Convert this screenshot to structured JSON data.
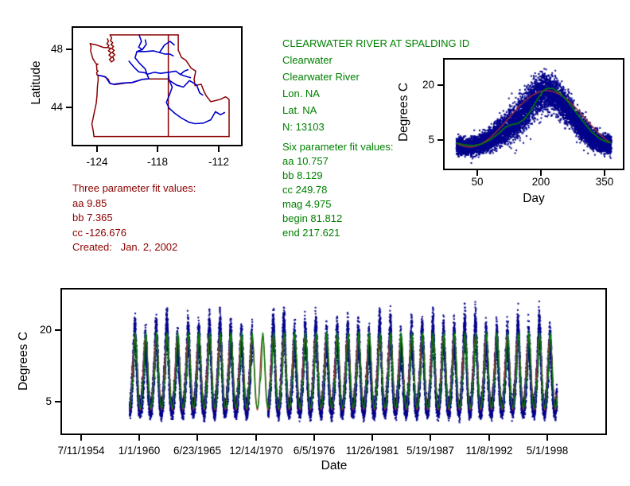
{
  "colors": {
    "background": "#ffffff",
    "axis": "#000000",
    "scatter_point": "#00008B",
    "fit_green": "#008000",
    "fit_red": "#993333",
    "map_border": "#8B0000",
    "map_river": "#0000CC",
    "text_green": "#008000",
    "text_red": "#8B0000"
  },
  "station_info": {
    "title": "CLEARWATER RIVER AT SPALDING ID",
    "lines": [
      "Clearwater",
      "Clearwater River",
      "Lon. NA",
      "Lat. NA",
      "N: 13103"
    ],
    "fit_header": "Six parameter fit values:",
    "fit_values": [
      "aa 10.757",
      "bb 8.129",
      "cc 249.78",
      "mag 4.975",
      "begin 81.812",
      "end 217.621"
    ]
  },
  "three_param": {
    "header": "Three parameter fit values:",
    "values": [
      "aa 9.85",
      "bb 7.365",
      "cc -126.676"
    ],
    "created": "Created:   Jan. 2, 2002"
  },
  "chart_data": [
    {
      "type": "map",
      "name": "station-locator-map",
      "ylabel": "Latitude",
      "x_ticks": [
        "-124",
        "-118",
        "-112"
      ],
      "y_ticks": [
        "48",
        "44"
      ],
      "lon_range": [
        -126.39,
        -109.88
      ],
      "lat_range": [
        41.43,
        49.48
      ],
      "border_color": "#8B0000",
      "river_color": "#0000CC",
      "state_borders": [
        [
          [
            -124.72,
            48.39
          ],
          [
            -124.63,
            48.2
          ],
          [
            -124.68,
            47.9
          ],
          [
            -124.45,
            47.35
          ],
          [
            -124.18,
            47.05
          ],
          [
            -124.1,
            47.0
          ],
          [
            -123.95,
            46.98
          ],
          [
            -124.1,
            46.93
          ],
          [
            -124.05,
            46.55
          ],
          [
            -123.95,
            46.5
          ],
          [
            -124.08,
            46.4
          ],
          [
            -124.05,
            46.25
          ],
          [
            -123.95,
            46.22
          ],
          [
            -123.93,
            45.9
          ],
          [
            -124.0,
            45.45
          ],
          [
            -124.05,
            44.8
          ],
          [
            -124.12,
            44.3
          ],
          [
            -124.4,
            43.35
          ],
          [
            -124.55,
            42.85
          ],
          [
            -124.42,
            42.4
          ],
          [
            -124.35,
            42.0
          ]
        ],
        [
          [
            -124.35,
            42.0
          ],
          [
            -111.05,
            42.0
          ]
        ],
        [
          [
            -111.05,
            42.0
          ],
          [
            -111.05,
            44.55
          ],
          [
            -111.4,
            44.73
          ],
          [
            -111.9,
            44.56
          ],
          [
            -112.4,
            44.47
          ],
          [
            -112.85,
            44.4
          ],
          [
            -113.3,
            44.8
          ],
          [
            -113.52,
            45.1
          ],
          [
            -113.8,
            45.6
          ],
          [
            -114.4,
            45.5
          ],
          [
            -114.5,
            45.95
          ],
          [
            -114.33,
            46.5
          ],
          [
            -114.78,
            46.7
          ],
          [
            -115.3,
            47.25
          ],
          [
            -115.75,
            47.45
          ],
          [
            -116.05,
            47.95
          ],
          [
            -116.05,
            48.99
          ]
        ],
        [
          [
            -116.05,
            48.99
          ],
          [
            -122.76,
            48.99
          ]
        ],
        [
          [
            -117.03,
            48.99
          ],
          [
            -117.03,
            42.0
          ]
        ],
        [
          [
            -123.95,
            46.22
          ],
          [
            -123.4,
            46.15
          ],
          [
            -122.95,
            45.95
          ],
          [
            -122.76,
            45.65
          ],
          [
            -122.3,
            45.57
          ],
          [
            -121.2,
            45.68
          ],
          [
            -120.5,
            45.72
          ],
          [
            -119.6,
            45.93
          ],
          [
            -119.03,
            45.96
          ],
          [
            -117.03,
            45.96
          ]
        ],
        [
          [
            -122.76,
            48.99
          ],
          [
            -122.6,
            48.77
          ],
          [
            -122.72,
            48.6
          ],
          [
            -122.5,
            48.45
          ],
          [
            -122.67,
            48.33
          ],
          [
            -122.42,
            48.2
          ],
          [
            -122.6,
            48.05
          ],
          [
            -122.35,
            47.93
          ],
          [
            -122.55,
            47.78
          ],
          [
            -122.3,
            47.63
          ],
          [
            -122.52,
            47.48
          ],
          [
            -122.35,
            47.28
          ],
          [
            -122.62,
            47.13
          ],
          [
            -122.82,
            47.3
          ],
          [
            -122.6,
            47.45
          ],
          [
            -122.87,
            47.6
          ],
          [
            -122.65,
            47.77
          ],
          [
            -122.92,
            47.9
          ],
          [
            -122.7,
            48.07
          ],
          [
            -123.02,
            48.12
          ],
          [
            -122.87,
            48.27
          ],
          [
            -123.07,
            48.37
          ],
          [
            -122.92,
            48.55
          ],
          [
            -123.02,
            48.72
          ]
        ],
        [
          [
            -124.72,
            48.39
          ],
          [
            -124.1,
            48.3
          ],
          [
            -123.4,
            48.13
          ],
          [
            -123.07,
            48.12
          ]
        ]
      ],
      "rivers": [
        [
          [
            -119.9,
            48.99
          ],
          [
            -119.68,
            48.55
          ],
          [
            -119.95,
            48.15
          ],
          [
            -119.58,
            47.98
          ],
          [
            -120.12,
            47.85
          ],
          [
            -120.3,
            47.42
          ],
          [
            -119.92,
            47.08
          ],
          [
            -119.3,
            46.65
          ],
          [
            -119.12,
            46.28
          ],
          [
            -118.95,
            45.98
          ],
          [
            -119.6,
            45.93
          ],
          [
            -120.6,
            45.72
          ],
          [
            -121.6,
            45.68
          ],
          [
            -122.4,
            45.6
          ],
          [
            -122.78,
            45.66
          ],
          [
            -123.2,
            46.1
          ],
          [
            -123.95,
            46.22
          ]
        ],
        [
          [
            -119.58,
            47.98
          ],
          [
            -119.2,
            48.35
          ],
          [
            -119.3,
            48.65
          ]
        ],
        [
          [
            -120.12,
            47.85
          ],
          [
            -119.3,
            47.85
          ],
          [
            -118.5,
            47.9
          ],
          [
            -117.9,
            47.78
          ],
          [
            -117.4,
            47.68
          ],
          [
            -116.9,
            47.68
          ],
          [
            -116.55,
            47.55
          ]
        ],
        [
          [
            -117.9,
            47.78
          ],
          [
            -117.4,
            48.3
          ],
          [
            -116.85,
            48.55
          ],
          [
            -116.45,
            48.3
          ]
        ],
        [
          [
            -120.9,
            47.18
          ],
          [
            -120.45,
            46.8
          ],
          [
            -119.95,
            46.45
          ],
          [
            -119.3,
            46.38
          ],
          [
            -119.12,
            46.28
          ]
        ],
        [
          [
            -112.4,
            43.7
          ],
          [
            -112.85,
            43.15
          ],
          [
            -113.6,
            42.92
          ],
          [
            -114.4,
            42.88
          ],
          [
            -115.0,
            42.98
          ],
          [
            -115.8,
            43.3
          ],
          [
            -116.4,
            43.6
          ],
          [
            -116.95,
            43.95
          ],
          [
            -117.22,
            44.35
          ],
          [
            -116.9,
            44.9
          ],
          [
            -116.65,
            45.4
          ],
          [
            -116.95,
            45.88
          ],
          [
            -117.03,
            46.42
          ],
          [
            -117.8,
            46.35
          ],
          [
            -118.4,
            46.42
          ],
          [
            -119.12,
            46.28
          ]
        ],
        [
          [
            -117.03,
            46.42
          ],
          [
            -116.3,
            46.5
          ],
          [
            -115.85,
            46.27
          ],
          [
            -115.2,
            46.12
          ],
          [
            -114.85,
            46.05
          ]
        ],
        [
          [
            -115.85,
            46.27
          ],
          [
            -115.45,
            46.5
          ],
          [
            -115.1,
            46.6
          ]
        ],
        [
          [
            -116.9,
            45.85
          ],
          [
            -116.25,
            45.55
          ],
          [
            -115.55,
            45.4
          ],
          [
            -114.95,
            45.85
          ],
          [
            -114.25,
            45.55
          ],
          [
            -113.95,
            45.0
          ],
          [
            -113.65,
            44.85
          ]
        ],
        [
          [
            -112.4,
            43.7
          ],
          [
            -111.9,
            43.5
          ],
          [
            -111.5,
            43.65
          ]
        ]
      ]
    },
    {
      "type": "scatter",
      "name": "seasonal-temperature-plot",
      "title": "CLEARWATER RIVER AT SPALDING ID",
      "xlabel": "Day",
      "ylabel": "Degrees C",
      "x_ticks": [
        50,
        200,
        350
      ],
      "y_ticks": [
        20,
        5
      ],
      "x_range_days": [
        1,
        366
      ],
      "y_range": [
        -2.6,
        27.2
      ],
      "n_points": 13103,
      "point_color": "#00008B",
      "envelope": {
        "days": [
          1,
          20,
          40,
          60,
          80,
          100,
          120,
          140,
          160,
          175,
          190,
          205,
          220,
          240,
          260,
          280,
          300,
          320,
          340,
          365
        ],
        "mid": [
          3.8,
          3.2,
          3.4,
          4.2,
          5.4,
          6.8,
          8.6,
          10.6,
          13.2,
          15.2,
          17.2,
          18.6,
          18.4,
          16.8,
          14.2,
          11.2,
          8.2,
          5.8,
          4.4,
          3.9
        ],
        "spread": [
          1.6,
          1.5,
          1.6,
          1.8,
          2.1,
          2.4,
          2.7,
          3.0,
          3.2,
          3.3,
          3.4,
          3.3,
          3.2,
          3.1,
          2.9,
          2.6,
          2.2,
          1.9,
          1.7,
          1.6
        ]
      },
      "fit_green": {
        "color": "#008000",
        "days": [
          1,
          20,
          40,
          60,
          80,
          100,
          115,
          130,
          145,
          160,
          175,
          190,
          205,
          215,
          230,
          245,
          260,
          280,
          300,
          320,
          340,
          355,
          365
        ],
        "temps": [
          4.4,
          3.9,
          3.7,
          4.1,
          5.2,
          7.0,
          8.6,
          9.4,
          9.7,
          10.8,
          13.0,
          16.0,
          18.6,
          19.4,
          19.2,
          18.0,
          16.2,
          13.2,
          10.2,
          7.4,
          5.5,
          4.7,
          4.4
        ]
      },
      "fit_red": {
        "color": "#993333",
        "mean": 11,
        "amplitude": 7.7,
        "peak_day": 214
      }
    },
    {
      "type": "scatter",
      "name": "time-series-plot",
      "xlabel": "Date",
      "ylabel": "Degrees C",
      "x_tick_labels": [
        "7/11/1954",
        "1/1/1960",
        "6/23/1965",
        "12/14/1970",
        "6/5/1976",
        "11/26/1981",
        "5/19/1987",
        "11/8/1992",
        "5/1/1998"
      ],
      "x_tick_days": [
        0,
        2000,
        4000,
        6000,
        8000,
        10000,
        12000,
        14000,
        16000
      ],
      "y_ticks": [
        20,
        5
      ],
      "data_start_day": 1666,
      "data_end_day": 16335,
      "gap_days": [
        5879,
        6414
      ],
      "first_tick_day_of_year": 192,
      "point_color": "#00008B"
    }
  ]
}
